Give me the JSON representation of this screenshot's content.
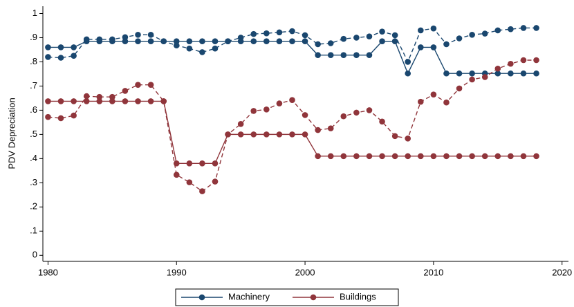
{
  "chart_data": {
    "type": "line",
    "y_label": "PDV Depreciation",
    "x": [
      1980,
      1981,
      1982,
      1983,
      1984,
      1985,
      1986,
      1987,
      1988,
      1989,
      1990,
      1991,
      1992,
      1993,
      1994,
      1995,
      1996,
      1997,
      1998,
      1999,
      2000,
      2001,
      2002,
      2003,
      2004,
      2005,
      2006,
      2007,
      2008,
      2009,
      2010,
      2011,
      2012,
      2013,
      2014,
      2015,
      2016,
      2017,
      2018
    ],
    "series": [
      {
        "name": "Machinery",
        "color": "#1a476f",
        "dash": false,
        "values": [
          0.86,
          0.86,
          0.86,
          0.885,
          0.885,
          0.885,
          0.885,
          0.885,
          0.885,
          0.885,
          0.885,
          0.885,
          0.885,
          0.885,
          0.885,
          0.885,
          0.885,
          0.885,
          0.885,
          0.885,
          0.885,
          0.828,
          0.828,
          0.828,
          0.828,
          0.828,
          0.885,
          0.885,
          0.752,
          0.86,
          0.86,
          0.752,
          0.752,
          0.752,
          0.752,
          0.752,
          0.752,
          0.752,
          0.752
        ]
      },
      {
        "color": "#1a476f",
        "dash": true,
        "values": [
          0.82,
          0.817,
          0.825,
          0.893,
          0.893,
          0.893,
          0.902,
          0.912,
          0.912,
          0.885,
          0.868,
          0.855,
          0.84,
          0.855,
          0.885,
          0.9,
          0.915,
          0.918,
          0.922,
          0.927,
          0.91,
          0.873,
          0.877,
          0.895,
          0.9,
          0.905,
          0.925,
          0.91,
          0.8,
          0.93,
          0.938,
          0.873,
          0.897,
          0.912,
          0.917,
          0.93,
          0.935,
          0.94,
          0.94
        ]
      },
      {
        "name": "Buildings",
        "color": "#90353b",
        "dash": false,
        "values": [
          0.637,
          0.637,
          0.637,
          0.637,
          0.637,
          0.637,
          0.637,
          0.637,
          0.637,
          0.637,
          0.38,
          0.38,
          0.38,
          0.38,
          0.5,
          0.5,
          0.5,
          0.5,
          0.5,
          0.5,
          0.5,
          0.41,
          0.41,
          0.41,
          0.41,
          0.41,
          0.41,
          0.41,
          0.41,
          0.41,
          0.41,
          0.41,
          0.41,
          0.41,
          0.41,
          0.41,
          0.41,
          0.41,
          0.41
        ]
      },
      {
        "color": "#90353b",
        "dash": true,
        "values": [
          0.572,
          0.567,
          0.578,
          0.658,
          0.655,
          0.655,
          0.68,
          0.705,
          0.705,
          0.637,
          0.333,
          0.302,
          0.265,
          0.305,
          0.5,
          0.543,
          0.597,
          0.603,
          0.628,
          0.642,
          0.58,
          0.518,
          0.525,
          0.575,
          0.59,
          0.6,
          0.553,
          0.493,
          0.483,
          0.635,
          0.665,
          0.632,
          0.69,
          0.727,
          0.737,
          0.772,
          0.792,
          0.807,
          0.807
        ]
      }
    ],
    "xlim": [
      1979.6,
      2020.5
    ],
    "xticks": [
      1980,
      1990,
      2000,
      2010,
      2020
    ],
    "ylim": [
      -0.025,
      1.03
    ],
    "yticks": [
      0,
      {
        "value": 0.1,
        "label": ".1"
      },
      {
        "value": 0.2,
        "label": ".2"
      },
      {
        "value": 0.3,
        "label": ".3"
      },
      {
        "value": 0.4,
        "label": ".4"
      },
      {
        "value": 0.5,
        "label": ".5"
      },
      {
        "value": 0.6,
        "label": ".6"
      },
      {
        "value": 0.7,
        "label": ".7"
      },
      {
        "value": 0.8,
        "label": ".8"
      },
      {
        "value": 0.9,
        "label": ".9"
      },
      1
    ],
    "grid": false,
    "legend": "bottom"
  }
}
